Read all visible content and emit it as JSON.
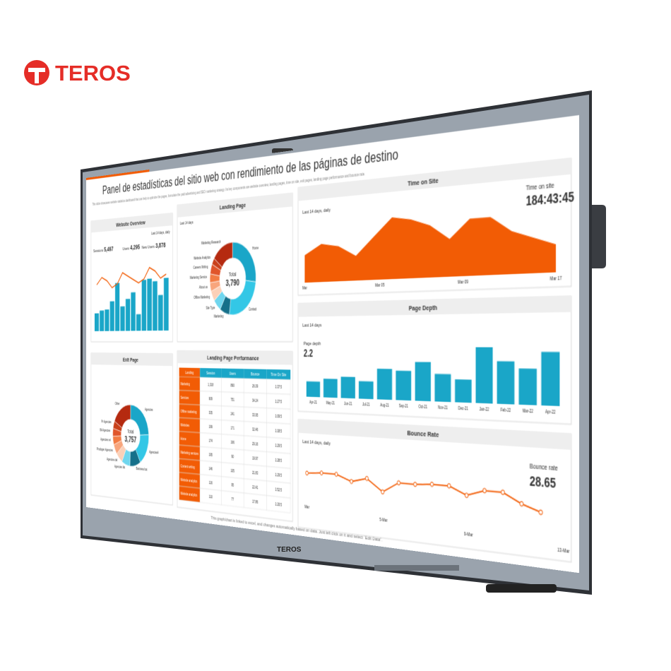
{
  "brand": {
    "name": "TEROS"
  },
  "bezel": {
    "logo": "TEROS"
  },
  "screen": {
    "title": "Panel de estadísticas del sitio web con rendimiento de las páginas de destino",
    "description": "This slide showcases website statistics dashboard that can help to optimize the pages, formulate the paid advertising and SEO marketing strategy. Its key components are website overview, landing pages, time on site, exit pages, landing page performance and bounce rate.",
    "footer": "This graph/chart is linked to excel, and changes automatically based on data. Just left click on it and select “Edit Data”.",
    "website_overview": {
      "title": "Website Overview",
      "note": "Last 14 days, daily",
      "stats": [
        {
          "label": "Sessions",
          "value": "5,497"
        },
        {
          "label": "Users",
          "value": "4,295"
        },
        {
          "label": "New Users",
          "value": "3,878"
        }
      ],
      "bars": [
        2,
        2.3,
        2.4,
        3.3,
        5.3,
        2.7,
        3.5,
        4.2,
        1.8,
        5.5,
        5.6,
        5.3,
        3.8,
        5.6
      ],
      "line": [
        4,
        6,
        5,
        3,
        4,
        7,
        6,
        5,
        4,
        5,
        8,
        7,
        5,
        6
      ]
    },
    "landing_page": {
      "title": "Landing Page",
      "note": "Last 14 days",
      "total_label": "Total",
      "total": "3,790",
      "slices": [
        {
          "label": "Home",
          "value": 1020
        },
        {
          "label": "Contact",
          "value": 960
        },
        {
          "label": "Marketing",
          "value": 260
        },
        {
          "label": "Site Type",
          "value": 220
        },
        {
          "label": "Offline Marketing",
          "value": 180
        },
        {
          "label": "About us",
          "value": 150
        },
        {
          "label": "Marketing Service",
          "value": 150
        },
        {
          "label": "Careers Writing",
          "value": 170
        },
        {
          "label": "Website Analytics",
          "value": 110
        },
        {
          "label": "Marketing Research",
          "value": 570
        }
      ]
    },
    "time_on_site": {
      "title": "Time on Site",
      "note": "Last 14 days, daily",
      "metric_label": "Time on site",
      "metric": "184:43:45",
      "axis_labels": [
        "Mar",
        "Mar 05",
        "Mar 09",
        "Mar 17"
      ],
      "values": [
        40,
        55,
        50,
        35,
        60,
        85,
        80,
        70,
        50,
        75,
        75,
        55,
        45,
        35
      ]
    },
    "page_depth": {
      "title": "Page Depth",
      "note": "Last 14 days",
      "metric_label": "Page depth",
      "metric": "2.2",
      "categories": [
        "Apr-21",
        "May-21",
        "Jun-21",
        "Jul-21",
        "Aug-21",
        "Sep-21",
        "Oct-21",
        "Nov-21",
        "Dec-21",
        "Jan-22",
        "Feb-22",
        "Mar-22",
        "Apr-22"
      ],
      "values": [
        2,
        2.4,
        2.7,
        2.2,
        3.8,
        3.6,
        4.7,
        3.3,
        2.7,
        6.5,
        4.9,
        4.1,
        6
      ]
    },
    "exit_page": {
      "title": "Exit Page",
      "total_label": "Total",
      "total": "3,757",
      "slices": [
        {
          "label": "Agencies",
          "value": 900
        },
        {
          "label": "Agencies4",
          "value": 640
        },
        {
          "label": "Business bot",
          "value": 360
        },
        {
          "label": "Agencies list",
          "value": 280
        },
        {
          "label": "Agencies del",
          "value": 230
        },
        {
          "label": "Prodogen Agencies",
          "value": 200
        },
        {
          "label": "Agencies rel",
          "value": 170
        },
        {
          "label": "BA Agencies",
          "value": 160
        },
        {
          "label": "Pr Agencies",
          "value": 150
        },
        {
          "label": "Other",
          "value": 670
        }
      ]
    },
    "performance": {
      "title": "Landing Page Performance",
      "headers": [
        "Landing",
        "Session",
        "Users",
        "Bounce",
        "Time On Site"
      ],
      "rows": [
        [
          "Marketing",
          "1,318",
          "860",
          "26.09",
          "1:37:5"
        ],
        [
          "Services",
          "909",
          "751",
          "34.24",
          "1:27:5"
        ],
        [
          "Offline marketing",
          "335",
          "241",
          "33.95",
          "1:09:5"
        ],
        [
          "Websites",
          "199",
          "171",
          "32.46",
          "1:18:5"
        ],
        [
          "Home",
          "174",
          "166",
          "29.16",
          "1:29:5"
        ],
        [
          "Marketing services",
          "195",
          "90",
          "19.97",
          "1:28:5"
        ],
        [
          "Content writing",
          "146",
          "105",
          "21.83",
          "1:29:5"
        ],
        [
          "Website analytics",
          "116",
          "95",
          "22.41",
          "1:52:5"
        ],
        [
          "Website analytics",
          "110",
          "77",
          "17.86",
          "1:20:5"
        ]
      ]
    },
    "bounce_rate": {
      "title": "Bounce Rate",
      "note": "Last 14 days, daily",
      "metric_label": "Bounce rate",
      "metric": "28.65",
      "axis_labels": [
        "Mar",
        "5-Mar",
        "9-Mar",
        "13-Mar"
      ],
      "values": [
        20,
        21,
        21,
        17,
        20,
        12,
        19,
        19,
        20,
        20,
        15,
        19,
        19,
        13,
        9
      ]
    }
  }
}
